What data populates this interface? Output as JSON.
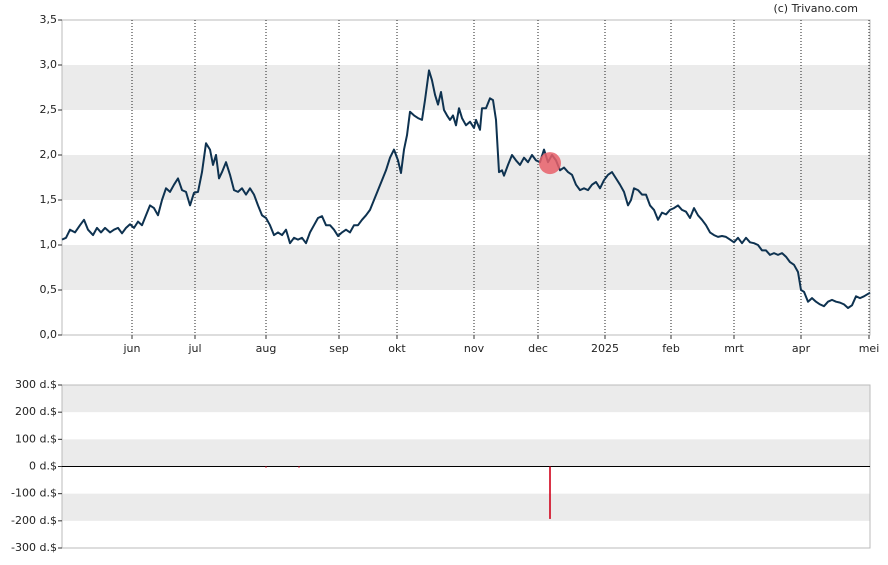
{
  "chart_data": [
    {
      "type": "line",
      "credit": "(c) Trivano.com",
      "color": "#0e3250",
      "bands": true,
      "band_color": "#ebebeb",
      "xgrid": true,
      "xlim": [
        0,
        808
      ],
      "xticks": [
        {
          "value": 70,
          "label": "jun"
        },
        {
          "value": 133,
          "label": "jul"
        },
        {
          "value": 204,
          "label": "aug"
        },
        {
          "value": 277,
          "label": "sep"
        },
        {
          "value": 335,
          "label": "okt"
        },
        {
          "value": 412,
          "label": "nov"
        },
        {
          "value": 476,
          "label": "dec"
        },
        {
          "value": 543,
          "label": "2025"
        },
        {
          "value": 609,
          "label": "feb"
        },
        {
          "value": 672,
          "label": "mrt"
        },
        {
          "value": 739,
          "label": "apr"
        },
        {
          "value": 807,
          "label": "mei"
        }
      ],
      "ylim": [
        0,
        3.5
      ],
      "yticks": [
        {
          "value": 0,
          "label": "0,0"
        },
        {
          "value": 0.5,
          "label": "0,5"
        },
        {
          "value": 1,
          "label": "1,0"
        },
        {
          "value": 1.5,
          "label": "1,5"
        },
        {
          "value": 2,
          "label": "2,0"
        },
        {
          "value": 2.5,
          "label": "2,5"
        },
        {
          "value": 3,
          "label": "3,0"
        },
        {
          "value": 3.5,
          "label": "3,5"
        }
      ],
      "x": [
        0,
        4,
        8,
        13,
        18,
        22,
        26,
        31,
        35,
        39,
        43,
        48,
        52,
        56,
        60,
        64,
        68,
        72,
        76,
        80,
        84,
        88,
        92,
        96,
        100,
        104,
        108,
        112,
        116,
        120,
        124,
        128,
        132,
        136,
        140,
        144,
        148,
        151,
        154,
        157,
        160,
        164,
        168,
        172,
        176,
        180,
        184,
        188,
        192,
        196,
        200,
        204,
        208,
        212,
        216,
        220,
        224,
        228,
        232,
        236,
        240,
        244,
        248,
        252,
        256,
        260,
        264,
        268,
        272,
        276,
        280,
        284,
        288,
        292,
        296,
        300,
        304,
        308,
        312,
        316,
        320,
        324,
        328,
        332,
        336,
        339,
        342,
        345,
        348,
        352,
        356,
        360,
        363,
        367,
        370,
        373,
        376,
        379,
        382,
        385,
        388,
        391,
        394,
        397,
        400,
        404,
        408,
        412,
        414,
        418,
        420,
        424,
        428,
        431,
        434,
        437,
        440,
        442,
        446,
        450,
        454,
        458,
        462,
        466,
        470,
        474,
        478,
        482,
        486,
        490,
        494,
        498,
        502,
        506,
        510,
        514,
        518,
        522,
        526,
        530,
        534,
        538,
        542,
        546,
        550,
        554,
        558,
        562,
        566,
        569,
        572,
        576,
        580,
        584,
        588,
        592,
        596,
        600,
        604,
        608,
        612,
        616,
        620,
        624,
        628,
        632,
        636,
        640,
        644,
        648,
        652,
        656,
        660,
        664,
        668,
        672,
        676,
        680,
        684,
        688,
        692,
        696,
        700,
        704,
        708,
        712,
        716,
        720,
        724,
        728,
        732,
        736,
        739,
        742,
        746,
        750,
        754,
        758,
        762,
        766,
        770,
        774,
        778,
        782,
        786,
        790,
        794,
        798,
        802,
        808
      ],
      "values": [
        1.06,
        1.08,
        1.17,
        1.14,
        1.22,
        1.28,
        1.17,
        1.11,
        1.19,
        1.14,
        1.19,
        1.14,
        1.17,
        1.19,
        1.13,
        1.19,
        1.23,
        1.19,
        1.26,
        1.22,
        1.33,
        1.44,
        1.41,
        1.33,
        1.5,
        1.63,
        1.59,
        1.67,
        1.74,
        1.61,
        1.59,
        1.44,
        1.58,
        1.59,
        1.81,
        2.13,
        2.06,
        1.89,
        2,
        1.74,
        1.81,
        1.92,
        1.78,
        1.61,
        1.59,
        1.63,
        1.56,
        1.63,
        1.56,
        1.44,
        1.33,
        1.3,
        1.22,
        1.11,
        1.14,
        1.11,
        1.17,
        1.02,
        1.08,
        1.06,
        1.08,
        1.02,
        1.14,
        1.22,
        1.3,
        1.32,
        1.22,
        1.22,
        1.17,
        1.1,
        1.14,
        1.17,
        1.14,
        1.22,
        1.22,
        1.28,
        1.33,
        1.39,
        1.5,
        1.61,
        1.72,
        1.83,
        1.97,
        2.06,
        1.94,
        1.8,
        2.06,
        2.22,
        2.48,
        2.44,
        2.41,
        2.39,
        2.61,
        2.94,
        2.83,
        2.67,
        2.56,
        2.7,
        2.5,
        2.44,
        2.39,
        2.44,
        2.33,
        2.52,
        2.41,
        2.33,
        2.37,
        2.3,
        2.39,
        2.28,
        2.52,
        2.52,
        2.63,
        2.61,
        2.39,
        1.81,
        1.83,
        1.77,
        1.89,
        2,
        1.94,
        1.89,
        1.97,
        1.92,
        2,
        1.94,
        1.92,
        2.06,
        1.92,
        2,
        1.94,
        1.83,
        1.86,
        1.81,
        1.78,
        1.67,
        1.61,
        1.63,
        1.61,
        1.67,
        1.7,
        1.63,
        1.72,
        1.78,
        1.81,
        1.74,
        1.67,
        1.59,
        1.44,
        1.5,
        1.63,
        1.61,
        1.56,
        1.56,
        1.44,
        1.39,
        1.28,
        1.36,
        1.34,
        1.39,
        1.41,
        1.44,
        1.39,
        1.37,
        1.3,
        1.41,
        1.33,
        1.28,
        1.22,
        1.14,
        1.11,
        1.09,
        1.1,
        1.09,
        1.06,
        1.03,
        1.08,
        1.02,
        1.08,
        1.03,
        1.02,
        1,
        0.94,
        0.94,
        0.89,
        0.91,
        0.89,
        0.91,
        0.87,
        0.81,
        0.78,
        0.7,
        0.5,
        0.48,
        0.37,
        0.41,
        0.37,
        0.34,
        0.32,
        0.37,
        0.39,
        0.37,
        0.36,
        0.34,
        0.3,
        0.33,
        0.43,
        0.41,
        0.43,
        0.47
      ],
      "highlight": {
        "x": 488,
        "y": 1.91,
        "color": "#e8606a"
      }
    },
    {
      "type": "bar",
      "color": "#d0021b",
      "bands": true,
      "band_color": "#ebebeb",
      "zero_line": true,
      "xlim": [
        0,
        808
      ],
      "ylim": [
        -300,
        300
      ],
      "yticks": [
        {
          "value": -300,
          "label": "-300 d.$"
        },
        {
          "value": -200,
          "label": "-200 d.$"
        },
        {
          "value": -100,
          "label": "-100 d.$"
        },
        {
          "value": 0,
          "label": "0 d.$"
        },
        {
          "value": 100,
          "label": "100 d.$"
        },
        {
          "value": 200,
          "label": "200 d.$"
        },
        {
          "value": 300,
          "label": "300 d.$"
        }
      ],
      "x": [
        204,
        237,
        488
      ],
      "values": [
        -3,
        -3,
        -193
      ]
    }
  ]
}
